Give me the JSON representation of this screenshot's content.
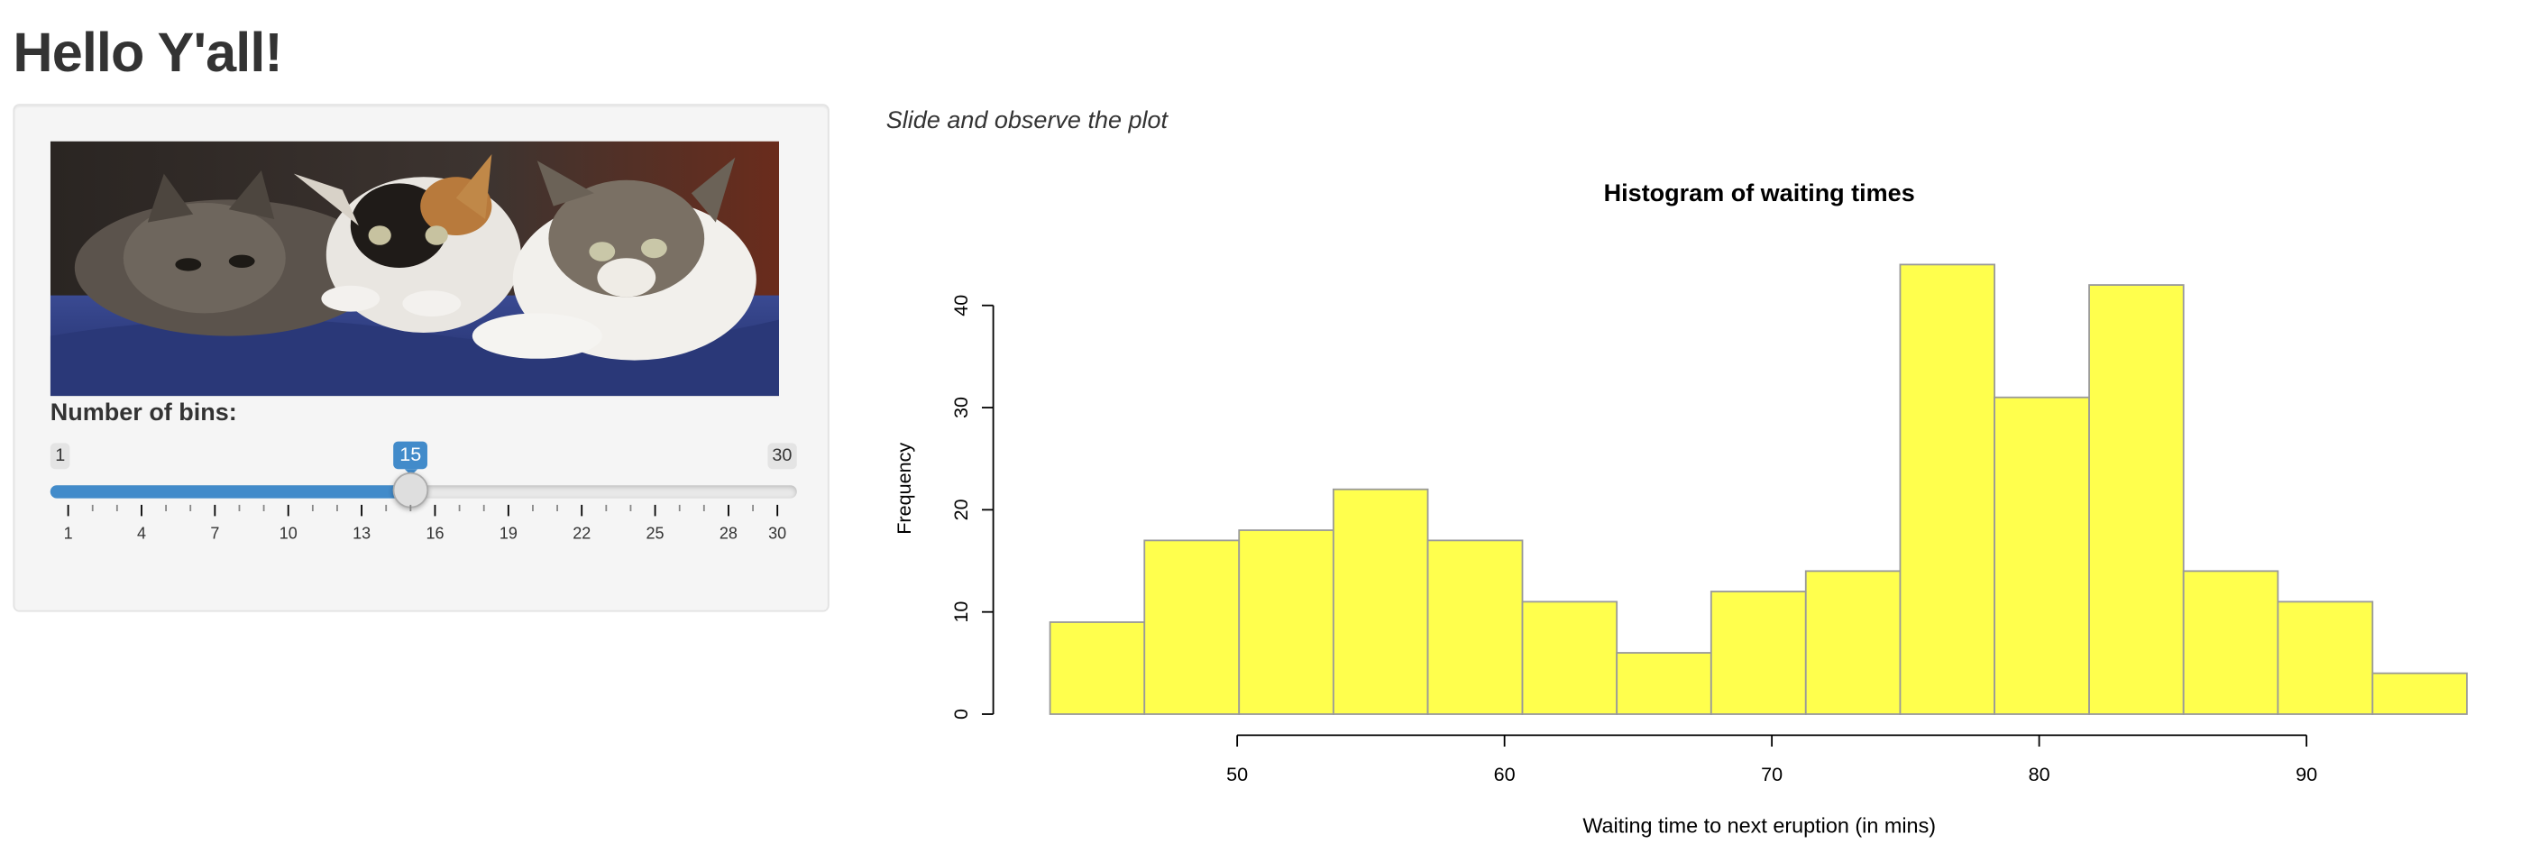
{
  "app": {
    "title": "Hello Y'all!"
  },
  "sidebar": {
    "image_alt": "three kittens lying on a blue blanket",
    "bins_label": "Number of bins:",
    "slider": {
      "min": 1,
      "max": 30,
      "value": 15,
      "min_label": "1",
      "max_label": "30",
      "value_label": "15",
      "tick_labels": [
        "1",
        "4",
        "7",
        "10",
        "13",
        "16",
        "19",
        "22",
        "25",
        "28",
        "30"
      ],
      "accent": "#428bca"
    }
  },
  "main": {
    "caption": "Slide and observe the plot"
  },
  "chart_data": {
    "type": "bar",
    "title": "Histogram of waiting times",
    "xlabel": "Waiting time to next eruption (in mins)",
    "ylabel": "Frequency",
    "bar_color": "#ffff4d",
    "bar_border": "#999999",
    "bin_edges": [
      43.0,
      46.53,
      50.07,
      53.6,
      57.13,
      60.67,
      64.2,
      67.73,
      71.27,
      74.8,
      78.33,
      81.87,
      85.4,
      88.93,
      92.47,
      96.0
    ],
    "values": [
      9,
      17,
      18,
      22,
      17,
      11,
      6,
      12,
      14,
      44,
      31,
      42,
      14,
      11,
      4
    ],
    "xlim": [
      43,
      96
    ],
    "ylim": [
      0,
      44
    ],
    "x_ticks": [
      50,
      60,
      70,
      80,
      90
    ],
    "y_ticks": [
      0,
      10,
      20,
      30,
      40
    ],
    "grid": false
  }
}
